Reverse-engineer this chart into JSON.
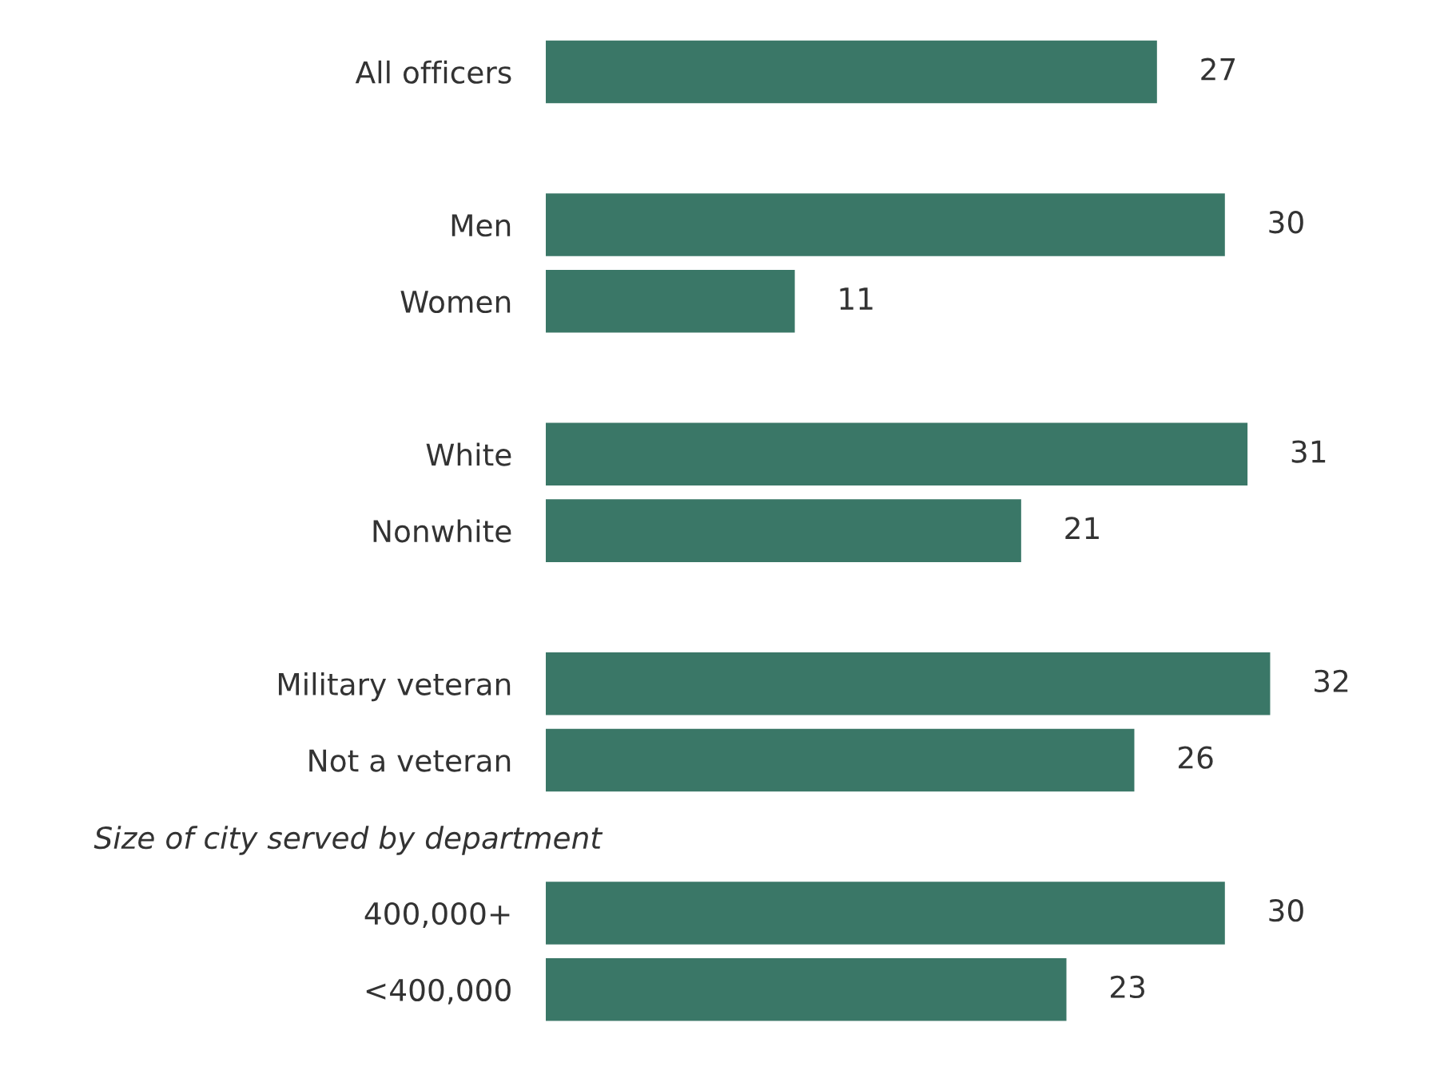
{
  "chart_data": {
    "type": "bar",
    "orientation": "horizontal",
    "categories": [
      "All officers",
      null,
      "Men",
      "Women",
      null,
      "White",
      "Nonwhite",
      null,
      "Military veteran",
      "Not a veteran",
      null,
      "400,000+",
      "<400,000"
    ],
    "series": [
      {
        "color": "#3a7767",
        "values": [
          27,
          null,
          30,
          11,
          null,
          31,
          21,
          null,
          32,
          26,
          null,
          30,
          23
        ]
      }
    ],
    "data_labels": true,
    "annotations": [
      "Size of city served by department"
    ]
  }
}
